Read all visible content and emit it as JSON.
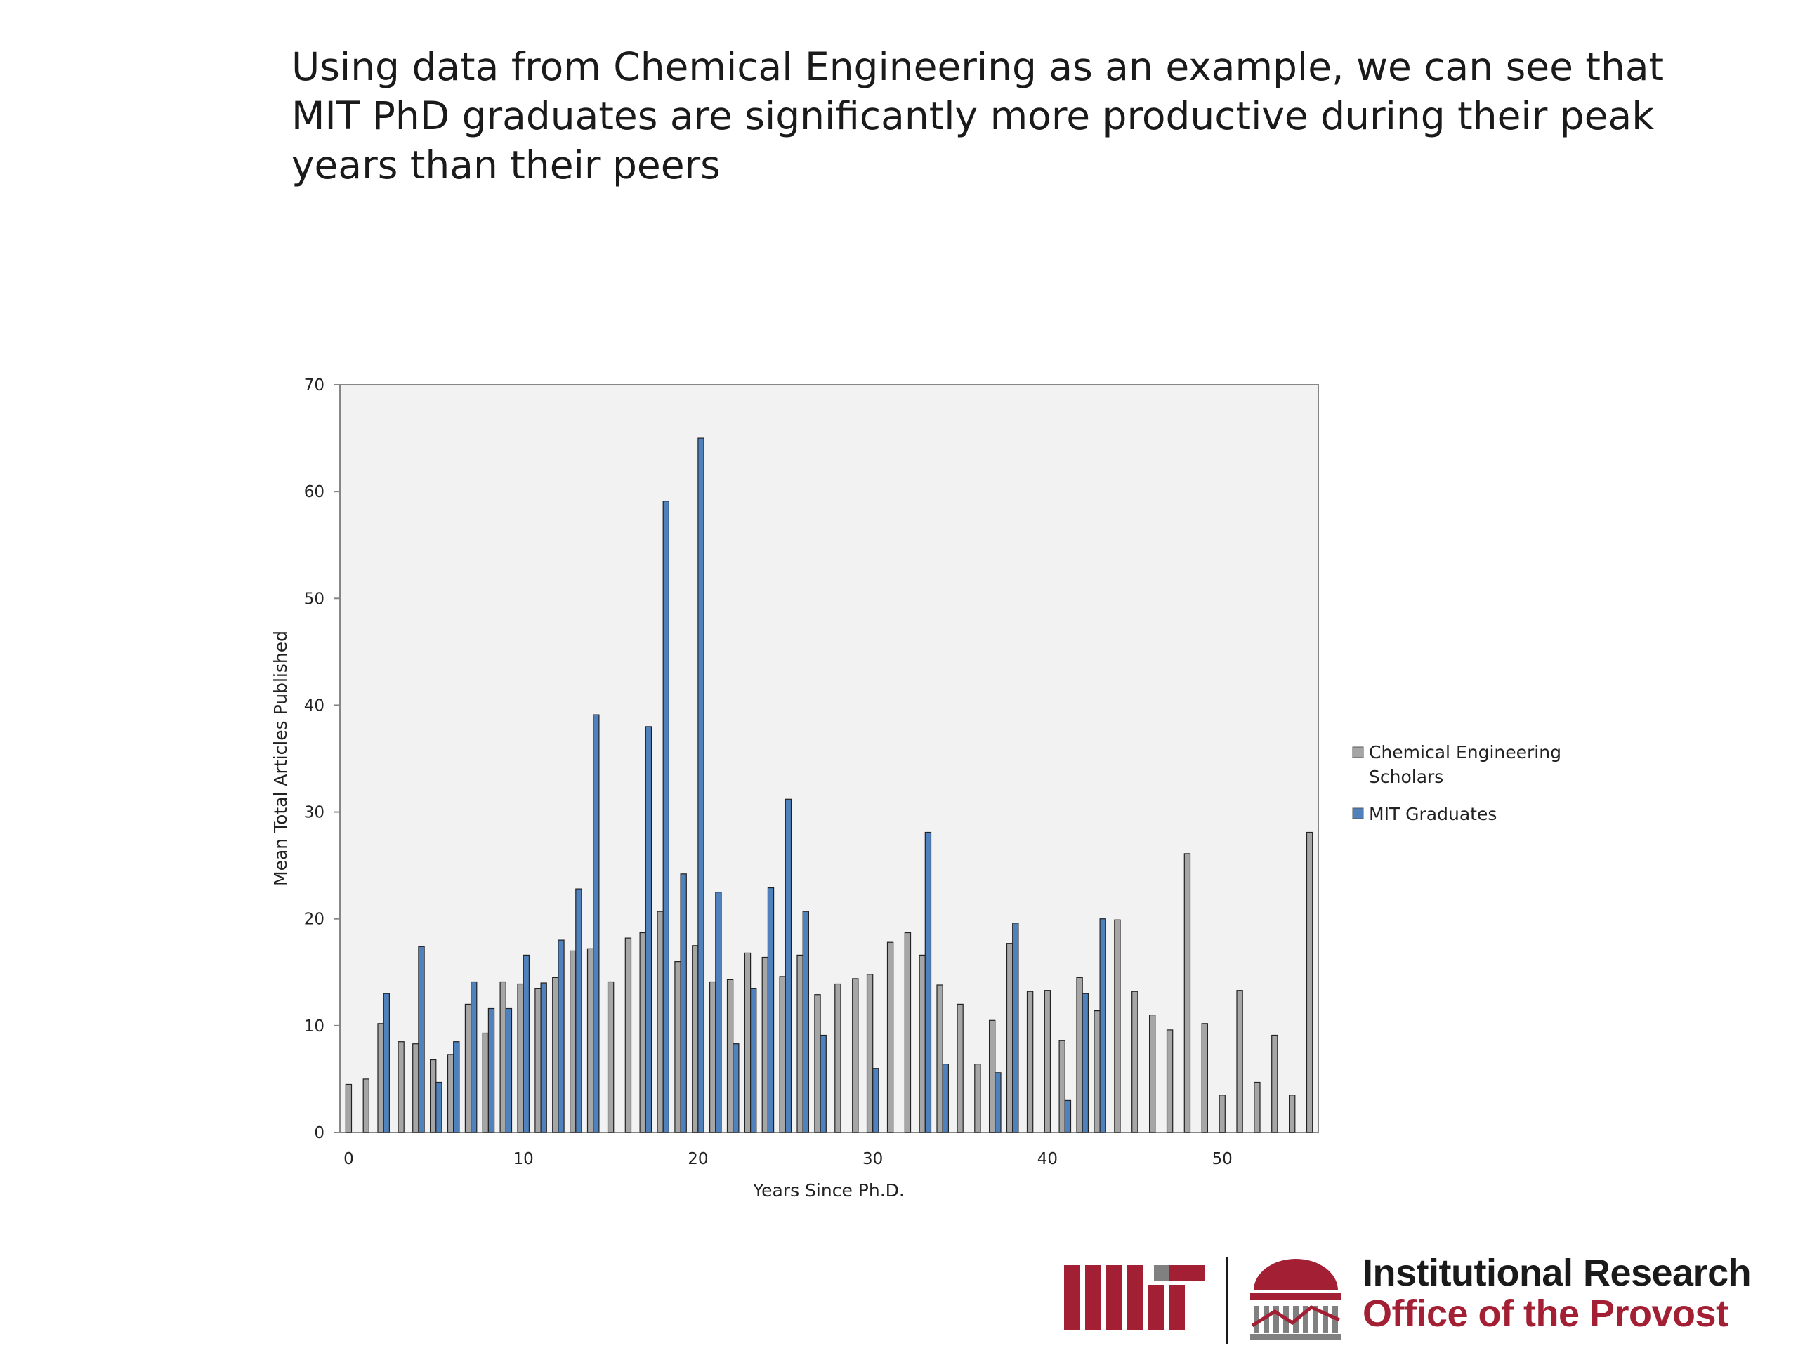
{
  "headline": "Using data from Chemical Engineering as an example, we can see that MIT PhD graduates are significantly more productive during their peak years than their peers",
  "footer": {
    "logo_text": "MIT",
    "title": "Institutional Research",
    "subtitle": "Office of the Provost"
  },
  "colors": {
    "series_gray": "#a6a6a6",
    "series_blue": "#4f81bd",
    "plot_bg": "#f2f2f2",
    "mit_red": "#a31f34"
  },
  "chart_data": {
    "type": "bar",
    "xlabel": "Years Since Ph.D.",
    "ylabel": "Mean Total Articles Published",
    "ylim": [
      0,
      70
    ],
    "yticks": [
      0,
      10,
      20,
      30,
      40,
      50,
      60,
      70
    ],
    "xticks": [
      0,
      10,
      20,
      30,
      40,
      50
    ],
    "xlim": [
      -0.5,
      55.5
    ],
    "grid": false,
    "legend_position": "right",
    "x": [
      0,
      1,
      2,
      3,
      4,
      5,
      6,
      7,
      8,
      9,
      10,
      11,
      12,
      13,
      14,
      15,
      16,
      17,
      18,
      19,
      20,
      21,
      22,
      23,
      24,
      25,
      26,
      27,
      28,
      29,
      30,
      31,
      32,
      33,
      34,
      35,
      36,
      37,
      38,
      39,
      40,
      41,
      42,
      43,
      44,
      45,
      46,
      47,
      48,
      49,
      50,
      51,
      52,
      53,
      54,
      55
    ],
    "series": [
      {
        "name": "Chemical Engineering Scholars",
        "color": "#a6a6a6",
        "values": [
          4.5,
          5,
          10.2,
          8.5,
          8.3,
          6.8,
          7.3,
          12,
          9.3,
          14.1,
          13.9,
          13.5,
          14.5,
          17,
          17.2,
          14.1,
          18.2,
          18.7,
          20.7,
          16,
          17.5,
          14.1,
          14.3,
          16.8,
          16.4,
          14.6,
          16.6,
          12.9,
          13.9,
          14.4,
          14.8,
          17.8,
          18.7,
          16.6,
          13.8,
          12,
          6.4,
          10.5,
          17.7,
          13.2,
          13.3,
          8.6,
          14.5,
          11.4,
          19.9,
          13.2,
          11,
          9.6,
          26.1,
          10.2,
          3.5,
          13.3,
          4.7,
          9.1,
          3.5,
          28.1
        ]
      },
      {
        "name": "MIT Graduates",
        "color": "#4f81bd",
        "values": [
          null,
          null,
          13,
          null,
          17.4,
          4.7,
          8.5,
          14.1,
          11.6,
          11.6,
          16.6,
          14,
          18,
          22.8,
          39.1,
          null,
          null,
          38,
          59.1,
          24.2,
          65,
          22.5,
          8.3,
          13.5,
          22.9,
          31.2,
          20.7,
          9.1,
          null,
          null,
          6,
          null,
          null,
          28.1,
          6.4,
          null,
          null,
          5.6,
          19.6,
          null,
          null,
          3,
          13,
          20,
          null,
          null,
          null,
          null,
          null,
          null,
          null,
          null,
          null,
          null,
          null,
          null
        ]
      }
    ]
  }
}
